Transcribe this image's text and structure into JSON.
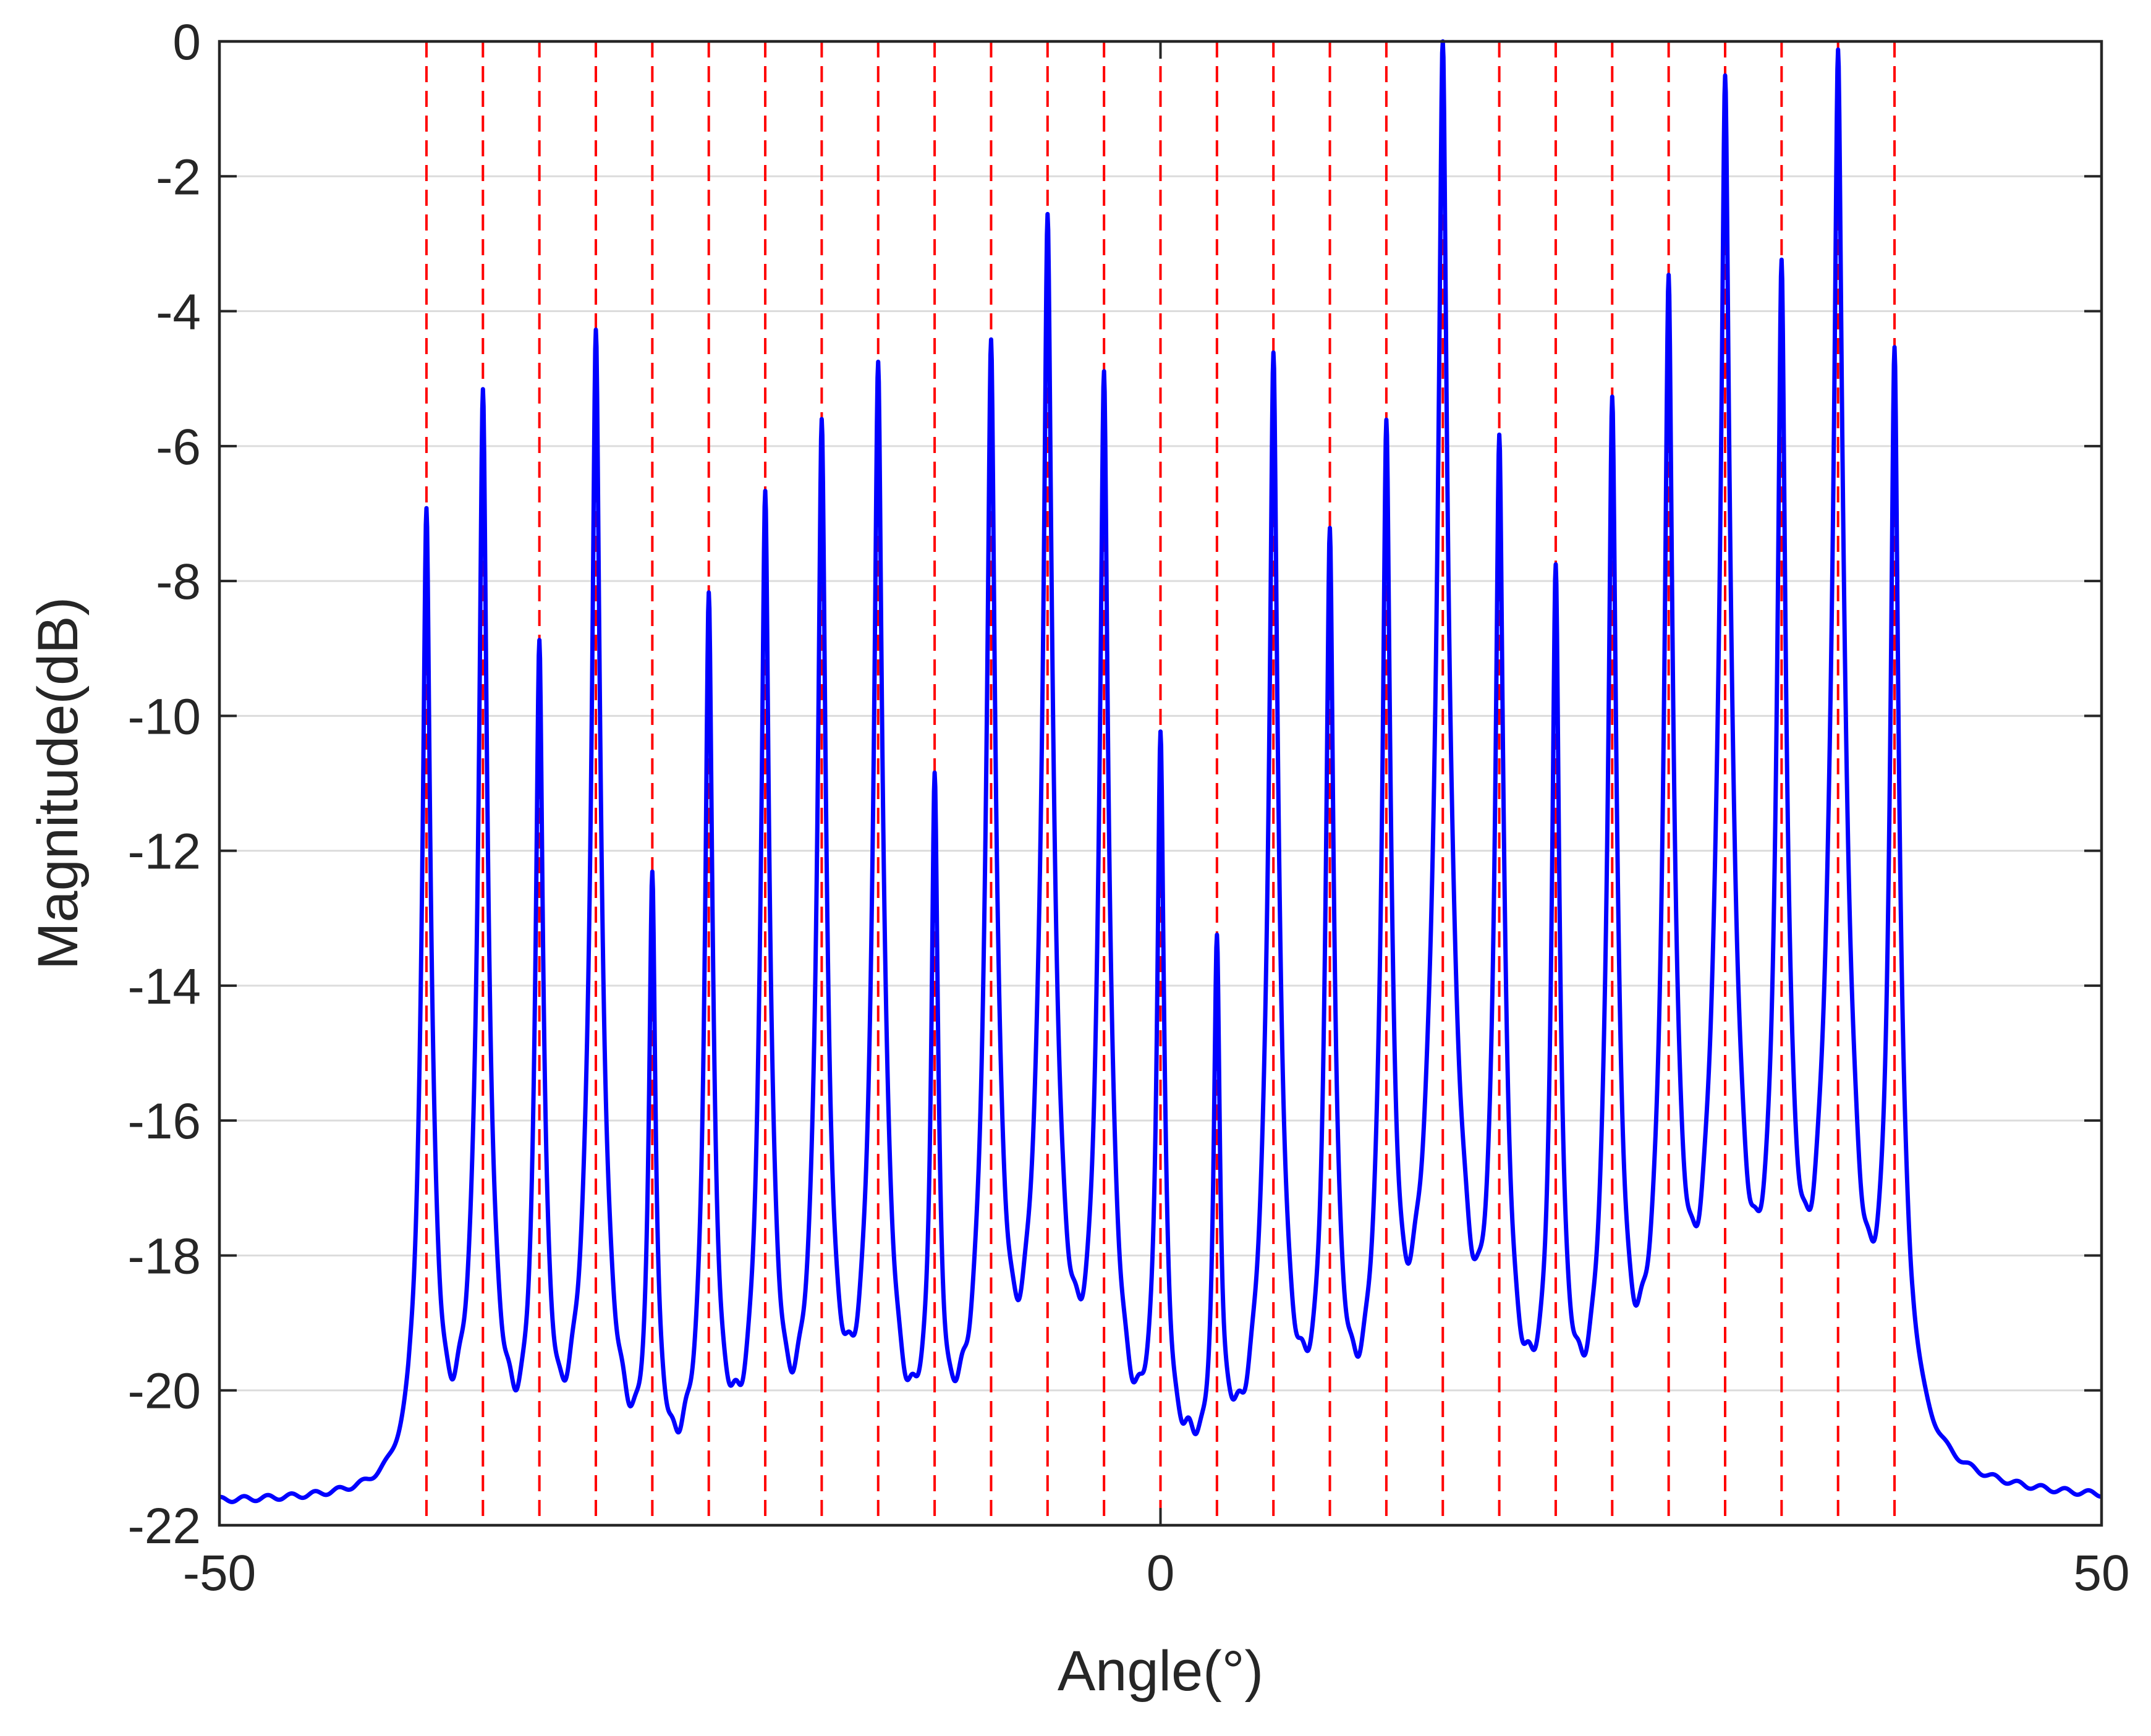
{
  "chart_data": {
    "type": "line",
    "title": "",
    "xlabel": "Angle(°)",
    "ylabel": "Magnitude(dB)",
    "xlim": [
      -50,
      50
    ],
    "ylim": [
      -22,
      0
    ],
    "xticks": [
      -50,
      0,
      50
    ],
    "yticks": [
      0,
      -2,
      -4,
      -6,
      -8,
      -10,
      -12,
      -14,
      -16,
      -18,
      -20,
      -22
    ],
    "grid": "horizontal",
    "colors": {
      "spectrum": "#0000ff",
      "true_angles": "#ff0000",
      "grid": "#dcdcdc",
      "axes": "#262626"
    },
    "noise_floor_db": -21.7,
    "true_angles": [
      -39,
      -36,
      -33,
      -30,
      -27,
      -24,
      -21,
      -18,
      -15,
      -12,
      -9,
      -6,
      -3,
      0,
      3,
      6,
      9,
      12,
      15,
      18,
      21,
      24,
      27,
      30,
      33,
      36,
      39
    ],
    "series": [
      {
        "peak_angles": [
          -39,
          -36,
          -33,
          -30,
          -27,
          -24,
          -21,
          -18,
          -15,
          -12,
          -9,
          -6,
          -3,
          0,
          3,
          6,
          9,
          12,
          15,
          18,
          21,
          24,
          27,
          30,
          33,
          36,
          39
        ],
        "peak_values": [
          -6.8,
          -5.3,
          -8.8,
          -4.4,
          -12.3,
          -8.3,
          -6.6,
          -5.7,
          -4.7,
          -11.0,
          -4.4,
          -2.6,
          -4.9,
          -10.3,
          -13.4,
          -4.6,
          -7.3,
          -5.6,
          0.0,
          -5.8,
          -7.9,
          -5.2,
          -3.6,
          -0.4,
          -3.4,
          0.0,
          -4.7
        ]
      }
    ]
  }
}
